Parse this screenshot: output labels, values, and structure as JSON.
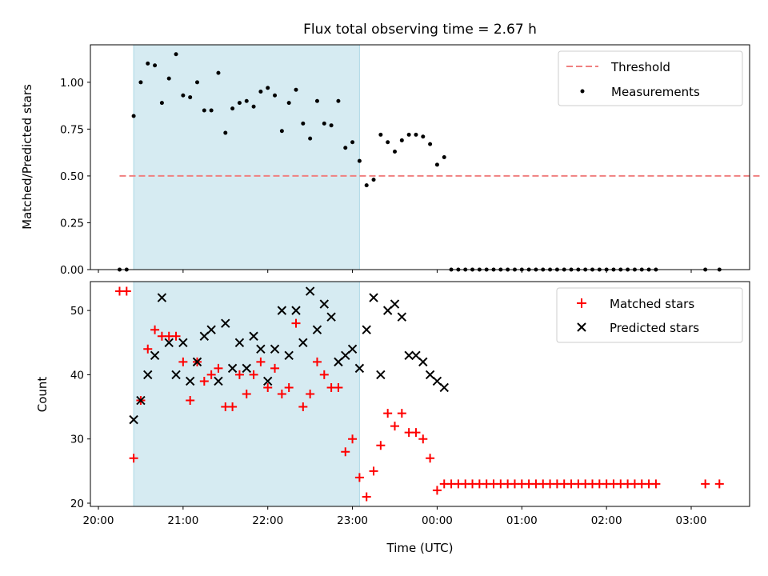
{
  "chart_data": {
    "type": "scatter",
    "title": "Flux total observing time = 2.67 h",
    "xlabel": "Time (UTC)",
    "x_ticks": [
      "20:00",
      "21:00",
      "22:00",
      "23:00",
      "00:00",
      "01:00",
      "02:00",
      "03:00"
    ],
    "shaded_interval": [
      "20:25",
      "23:05"
    ],
    "panels": [
      {
        "ylabel": "Matched/Predicted stars",
        "ylim": [
          0,
          1.2
        ],
        "yticks": [
          "0.00",
          "0.25",
          "0.50",
          "0.75",
          "1.00"
        ],
        "legend": "top-right",
        "series": [
          {
            "name": "Threshold",
            "kind": "dashed-line",
            "color": "#f08080",
            "x": [
              "20:15",
              "03:50"
            ],
            "y": [
              0.5,
              0.5
            ]
          },
          {
            "name": "Measurements",
            "kind": "dot",
            "color": "#000000",
            "x": [
              "20:15",
              "20:20",
              "20:25",
              "20:30",
              "20:35",
              "20:40",
              "20:45",
              "20:50",
              "20:55",
              "21:00",
              "21:05",
              "21:10",
              "21:15",
              "21:20",
              "21:25",
              "21:30",
              "21:35",
              "21:40",
              "21:45",
              "21:50",
              "21:55",
              "22:00",
              "22:05",
              "22:10",
              "22:15",
              "22:20",
              "22:25",
              "22:30",
              "22:35",
              "22:40",
              "22:45",
              "22:50",
              "22:55",
              "23:00",
              "23:05",
              "23:10",
              "23:15",
              "23:20",
              "23:25",
              "23:30",
              "23:35",
              "23:40",
              "23:45",
              "23:50",
              "23:55",
              "00:00",
              "00:05",
              "00:10",
              "00:15",
              "00:20",
              "00:25",
              "00:30",
              "00:35",
              "00:40",
              "00:45",
              "00:50",
              "00:55",
              "01:00",
              "01:05",
              "01:10",
              "01:15",
              "01:20",
              "01:25",
              "01:30",
              "01:35",
              "01:40",
              "01:45",
              "01:50",
              "01:55",
              "02:00",
              "02:05",
              "02:10",
              "02:15",
              "02:20",
              "02:25",
              "02:30",
              "02:35",
              "03:10",
              "03:20"
            ],
            "y": [
              0.0,
              0.0,
              0.82,
              1.0,
              1.1,
              1.09,
              0.89,
              1.02,
              1.15,
              0.93,
              0.92,
              1.0,
              0.85,
              0.85,
              1.05,
              0.73,
              0.86,
              0.89,
              0.9,
              0.87,
              0.95,
              0.97,
              0.93,
              0.74,
              0.89,
              0.96,
              0.78,
              0.7,
              0.9,
              0.78,
              0.77,
              0.9,
              0.65,
              0.68,
              0.58,
              0.45,
              0.48,
              0.72,
              0.68,
              0.63,
              0.69,
              0.72,
              0.72,
              0.71,
              0.67,
              0.56,
              0.6,
              0.0,
              0.0,
              0.0,
              0.0,
              0.0,
              0.0,
              0.0,
              0.0,
              0.0,
              0.0,
              0.0,
              0.0,
              0.0,
              0.0,
              0.0,
              0.0,
              0.0,
              0.0,
              0.0,
              0.0,
              0.0,
              0.0,
              0.0,
              0.0,
              0.0,
              0.0,
              0.0,
              0.0,
              0.0,
              0.0,
              0.0,
              0.0
            ]
          }
        ]
      },
      {
        "ylabel": "Count",
        "ylim": [
          19.5,
          54.5
        ],
        "yticks": [
          "20",
          "30",
          "40",
          "50"
        ],
        "legend": "top-right",
        "series": [
          {
            "name": "Matched stars",
            "kind": "plus",
            "color": "#ff0000",
            "x": [
              "20:15",
              "20:20",
              "20:25",
              "20:30",
              "20:35",
              "20:40",
              "20:45",
              "20:50",
              "20:55",
              "21:00",
              "21:05",
              "21:10",
              "21:15",
              "21:20",
              "21:25",
              "21:30",
              "21:35",
              "21:40",
              "21:45",
              "21:50",
              "21:55",
              "22:00",
              "22:05",
              "22:10",
              "22:15",
              "22:20",
              "22:25",
              "22:30",
              "22:35",
              "22:40",
              "22:45",
              "22:50",
              "22:55",
              "23:00",
              "23:05",
              "23:10",
              "23:15",
              "23:20",
              "23:25",
              "23:30",
              "23:35",
              "23:40",
              "23:45",
              "23:50",
              "23:55",
              "00:00",
              "00:05",
              "00:10",
              "00:15",
              "00:20",
              "00:25",
              "00:30",
              "00:35",
              "00:40",
              "00:45",
              "00:50",
              "00:55",
              "01:00",
              "01:05",
              "01:10",
              "01:15",
              "01:20",
              "01:25",
              "01:30",
              "01:35",
              "01:40",
              "01:45",
              "01:50",
              "01:55",
              "02:00",
              "02:05",
              "02:10",
              "02:15",
              "02:20",
              "02:25",
              "02:30",
              "02:35",
              "03:10",
              "03:20"
            ],
            "y": [
              53,
              53,
              27,
              36,
              44,
              47,
              46,
              46,
              46,
              42,
              36,
              42,
              39,
              40,
              41,
              35,
              35,
              40,
              37,
              40,
              42,
              38,
              41,
              37,
              38,
              48,
              35,
              37,
              42,
              40,
              38,
              38,
              28,
              30,
              24,
              21,
              25,
              29,
              34,
              32,
              34,
              31,
              31,
              30,
              27,
              22,
              23,
              23,
              23,
              23,
              23,
              23,
              23,
              23,
              23,
              23,
              23,
              23,
              23,
              23,
              23,
              23,
              23,
              23,
              23,
              23,
              23,
              23,
              23,
              23,
              23,
              23,
              23,
              23,
              23,
              23,
              23,
              23,
              23
            ]
          },
          {
            "name": "Predicted stars",
            "kind": "x",
            "color": "#000000",
            "x": [
              "20:25",
              "20:30",
              "20:35",
              "20:40",
              "20:45",
              "20:50",
              "20:55",
              "21:00",
              "21:05",
              "21:10",
              "21:15",
              "21:20",
              "21:25",
              "21:30",
              "21:35",
              "21:40",
              "21:45",
              "21:50",
              "21:55",
              "22:00",
              "22:05",
              "22:10",
              "22:15",
              "22:20",
              "22:25",
              "22:30",
              "22:35",
              "22:40",
              "22:45",
              "22:50",
              "22:55",
              "23:00",
              "23:05",
              "23:10",
              "23:15",
              "23:20",
              "23:25",
              "23:30",
              "23:35",
              "23:40",
              "23:45",
              "23:50",
              "23:55",
              "00:00",
              "00:05"
            ],
            "y": [
              33,
              36,
              40,
              43,
              52,
              45,
              40,
              45,
              39,
              42,
              46,
              47,
              39,
              48,
              41,
              45,
              41,
              46,
              44,
              39,
              44,
              50,
              43,
              50,
              45,
              53,
              47,
              51,
              49,
              42,
              43,
              44,
              41,
              47,
              52,
              40,
              50,
              51,
              49,
              43,
              43,
              42,
              40,
              39,
              38
            ]
          }
        ]
      }
    ]
  }
}
